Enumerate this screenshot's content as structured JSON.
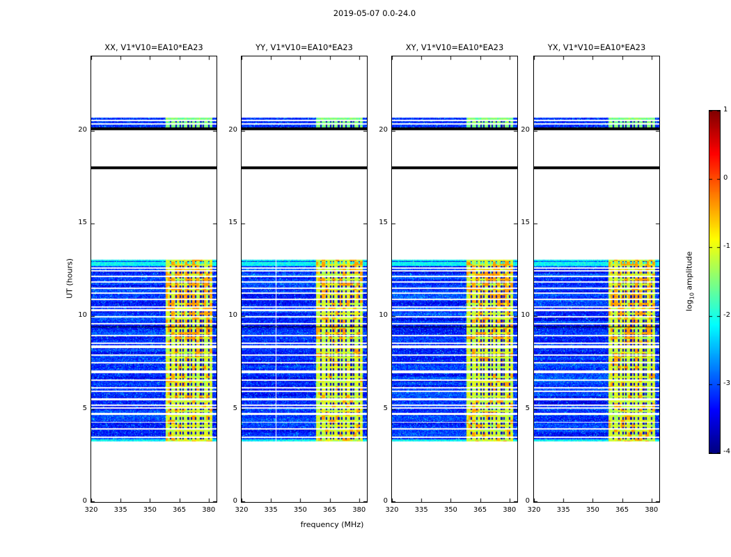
{
  "chart_data": {
    "type": "heatmap",
    "title": "2019-05-07 0.0-24.0",
    "xlabel": "frequency (MHz)",
    "ylabel": "UT (hours)",
    "x_range": [
      320,
      384
    ],
    "x_ticks": [
      320,
      335,
      350,
      365,
      380
    ],
    "y_range": [
      0,
      24
    ],
    "y_ticks": [
      0,
      5,
      10,
      15,
      20
    ],
    "colormap": "jet",
    "colorbar": {
      "label_prefix": "log",
      "label_sub": "10",
      "label_suffix": " amplitude",
      "range": [
        -4,
        1
      ],
      "ticks": [
        1,
        0,
        -1,
        -2,
        -3,
        -4
      ]
    },
    "panels": [
      {
        "title": "XX, V1*V10=EA10*EA23",
        "seed": 101,
        "intensity": 1.2
      },
      {
        "title": "YY, V1*V10=EA10*EA23",
        "seed": 202,
        "intensity": 0.8,
        "white_column_mhz": 337.5
      },
      {
        "title": "XY, V1*V10=EA10*EA23",
        "seed": 303,
        "intensity": 1.0
      },
      {
        "title": "YX, V1*V10=EA10*EA23",
        "seed": 404,
        "intensity": 0.9
      }
    ],
    "features": {
      "active_hours": [
        3.28,
        13.08
      ],
      "band_mhz": [
        357.8,
        381.6
      ],
      "band_amplitude_log10": [
        -1.5,
        -0.4
      ],
      "background_amplitude_log10": [
        -3.8,
        -2.9
      ],
      "blackout_rows_hours": [
        [
          17.93,
          18.09
        ],
        [
          20.03,
          20.18
        ],
        [
          9.42,
          9.48
        ]
      ],
      "upper_band_strips_hours": [
        [
          20.2,
          20.36
        ],
        [
          20.42,
          20.55
        ],
        [
          20.6,
          20.72
        ]
      ],
      "green_rows_hours": [
        12.78,
        12.9
      ],
      "rfi_dark_columns_mhz": [
        360.3,
        363.1,
        365.2,
        366.9,
        369.4,
        371.0,
        373.3,
        375.8,
        377.2,
        379.9
      ],
      "missing_rows_hours": [
        [
          3.48,
          3.56
        ],
        [
          3.92,
          4.0
        ],
        [
          4.28,
          4.34
        ],
        [
          4.72,
          4.8
        ],
        [
          5.06,
          5.12
        ],
        [
          5.18,
          5.26
        ],
        [
          5.5,
          5.62
        ],
        [
          5.94,
          6.02
        ],
        [
          6.14,
          6.2
        ],
        [
          6.54,
          6.62
        ],
        [
          6.94,
          7.12
        ],
        [
          7.48,
          7.56
        ],
        [
          7.88,
          7.96
        ],
        [
          8.32,
          8.44
        ],
        [
          8.54,
          8.6
        ],
        [
          8.94,
          9.02
        ],
        [
          9.58,
          9.66
        ],
        [
          9.94,
          10.02
        ],
        [
          10.28,
          10.42
        ],
        [
          10.5,
          10.56
        ],
        [
          10.88,
          10.96
        ],
        [
          11.22,
          11.3
        ],
        [
          11.48,
          11.56
        ],
        [
          11.84,
          11.92
        ],
        [
          12.14,
          12.2
        ],
        [
          12.42,
          12.5
        ],
        [
          12.58,
          12.64
        ]
      ]
    }
  }
}
